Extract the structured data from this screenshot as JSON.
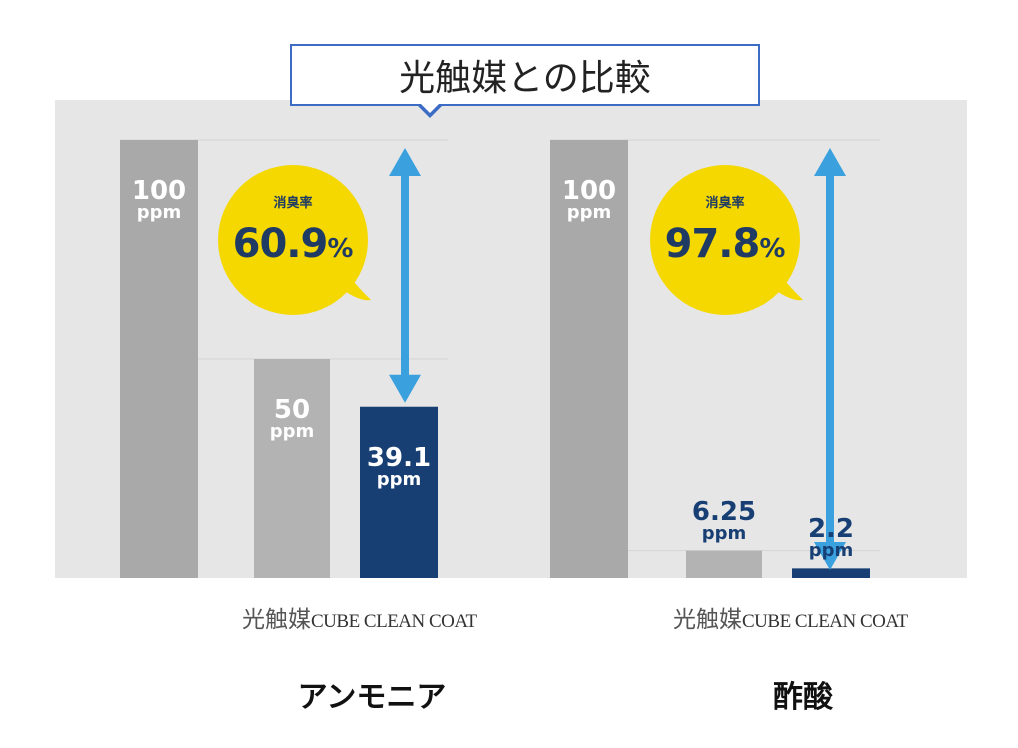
{
  "title": "光触媒との比較",
  "category_labels": {
    "photocatalyst": "光触媒",
    "product": "CUBE CLEAN COAT"
  },
  "deodorization_caption": "消臭率",
  "colors": {
    "background_panel": "#e6e6e6",
    "baseline_bar": "#a9a9a9",
    "photocatalyst_bar": "#b3b3b3",
    "product_bar": "#173f74",
    "bubble": "#f5d800",
    "arrow": "#3aa0de",
    "title_border": "#3d6cc4",
    "rate_text": "#1f3b63"
  },
  "chart_data": [
    {
      "type": "bar",
      "group": "アンモニア",
      "unit": "ppm",
      "categories": [
        "",
        "光触媒",
        "CUBE CLEAN COAT"
      ],
      "values": [
        100,
        50,
        39.1
      ],
      "labels": [
        "100",
        "50",
        "39.1"
      ],
      "ylim": [
        0,
        100
      ],
      "deodorization_rate": {
        "caption": "消臭率",
        "value": 60.9,
        "text": "60.9",
        "unit": "%"
      }
    },
    {
      "type": "bar",
      "group": "酢酸",
      "unit": "ppm",
      "categories": [
        "",
        "光触媒",
        "CUBE CLEAN COAT"
      ],
      "values": [
        100,
        6.25,
        2.2
      ],
      "labels": [
        "100",
        "6.25",
        "2.2"
      ],
      "ylim": [
        0,
        100
      ],
      "deodorization_rate": {
        "caption": "消臭率",
        "value": 97.8,
        "text": "97.8",
        "unit": "%"
      }
    }
  ]
}
